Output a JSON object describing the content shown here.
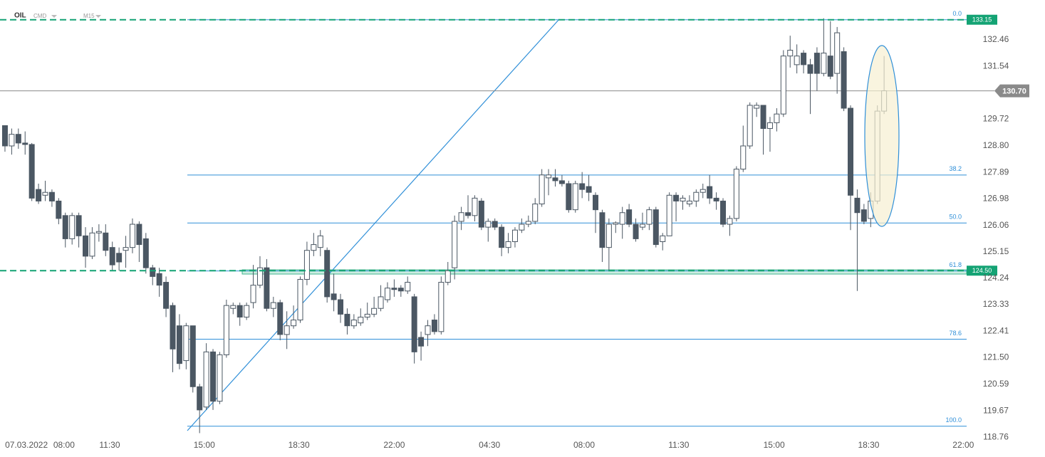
{
  "chart_data": {
    "type": "candlestick",
    "symbol": "OIL",
    "market": "CMD",
    "timeframe": "M15",
    "open": [
      129.5,
      128.8,
      129.2,
      128.9,
      128.85,
      127.3,
      127.1,
      127.2,
      126.9,
      126.4,
      125.6,
      126.4,
      125.7,
      125.0,
      125.8,
      125.8,
      125.3,
      125.1,
      125.2,
      125.3,
      126.1,
      125.6,
      124.6,
      124.4,
      124.1,
      123.3,
      122.6,
      121.4,
      122.6,
      120.5,
      119.8,
      121.7,
      120.0,
      121.6,
      123.2,
      123.3,
      122.9,
      123.4,
      124.0,
      124.6,
      123.2,
      123.4,
      122.3,
      122.6,
      122.8,
      124.2,
      125.2,
      125.3,
      125.2,
      123.7,
      123.5,
      123.0,
      122.6,
      122.7,
      122.9,
      123.0,
      123.2,
      123.5,
      123.9,
      123.9,
      123.8,
      123.6,
      122.2,
      122.3,
      122.8,
      122.4,
      124.1,
      124.6,
      126.2,
      126.5,
      126.4,
      126.9,
      126.0,
      126.2,
      126.0,
      125.3,
      125.5,
      125.9,
      126.1,
      126.2,
      126.8,
      127.7,
      127.7,
      127.6,
      127.5,
      126.6,
      127.5,
      127.4,
      127.1,
      126.5,
      125.3,
      126.1,
      126.1,
      126.6,
      126.1,
      126.0,
      126.1,
      126.6,
      125.5,
      125.7,
      127.1,
      126.9,
      126.8,
      126.9,
      127.2,
      127.4,
      127.0,
      126.9,
      126.1,
      126.3,
      128.0,
      128.8,
      130.1,
      130.2,
      129.4,
      129.6,
      129.9,
      131.9,
      131.6,
      132.0,
      131.6,
      132.0,
      131.3,
      131.9,
      131.3,
      132.05,
      130.1,
      127.0,
      126.6,
      126.3,
      126.9,
      130.0
    ],
    "high": [
      129.5,
      129.4,
      129.4,
      129.3,
      128.9,
      127.5,
      127.6,
      127.3,
      127.0,
      126.5,
      126.5,
      126.5,
      126.0,
      126.0,
      126.1,
      126.1,
      125.5,
      125.3,
      125.7,
      126.3,
      126.2,
      125.8,
      124.7,
      124.6,
      124.3,
      123.4,
      123.0,
      122.7,
      122.6,
      120.6,
      122.0,
      121.8,
      121.7,
      123.5,
      123.4,
      123.4,
      123.4,
      124.7,
      125.0,
      124.9,
      123.6,
      123.5,
      123.1,
      123.3,
      124.3,
      125.5,
      125.8,
      125.9,
      125.3,
      124.4,
      123.7,
      123.2,
      123.0,
      123.2,
      123.4,
      123.6,
      124.0,
      124.1,
      124.2,
      124.0,
      124.3,
      123.7,
      122.4,
      122.8,
      123.0,
      124.3,
      124.8,
      126.4,
      126.7,
      127.1,
      127.1,
      127.0,
      126.3,
      126.3,
      126.1,
      125.8,
      126.0,
      126.3,
      126.4,
      127.0,
      128.0,
      128.0,
      128.0,
      127.8,
      127.6,
      127.6,
      127.9,
      127.8,
      127.2,
      126.6,
      126.3,
      126.2,
      126.7,
      126.8,
      126.3,
      126.5,
      126.7,
      126.7,
      125.8,
      127.2,
      127.2,
      127.1,
      127.1,
      127.3,
      127.5,
      127.8,
      127.2,
      127.0,
      126.4,
      128.1,
      129.5,
      130.3,
      130.3,
      130.2,
      129.8,
      130.1,
      132.1,
      132.6,
      132.3,
      132.1,
      131.8,
      132.2,
      133.2,
      133.1,
      132.9,
      132.2,
      130.2,
      127.3,
      126.8,
      127.2,
      130.2,
      131.9
    ],
    "low": [
      128.6,
      128.5,
      128.7,
      128.5,
      126.9,
      126.8,
      126.9,
      126.7,
      126.1,
      125.3,
      125.4,
      125.3,
      124.6,
      124.9,
      125.5,
      125.0,
      124.5,
      124.5,
      124.6,
      125.1,
      124.8,
      124.4,
      124.0,
      123.6,
      122.9,
      121.0,
      121.1,
      121.1,
      120.3,
      118.9,
      119.7,
      119.7,
      119.9,
      121.5,
      123.0,
      122.6,
      122.8,
      123.2,
      123.9,
      123.1,
      122.9,
      122.1,
      121.8,
      122.5,
      122.7,
      124.0,
      125.0,
      125.0,
      123.4,
      123.1,
      122.7,
      122.3,
      122.5,
      122.6,
      122.8,
      122.9,
      123.1,
      123.4,
      123.6,
      123.6,
      123.7,
      121.3,
      121.4,
      121.9,
      122.3,
      122.3,
      124.0,
      124.2,
      125.9,
      126.3,
      126.2,
      125.9,
      125.5,
      125.9,
      125.0,
      125.1,
      125.3,
      125.8,
      126.0,
      126.1,
      126.7,
      127.1,
      127.4,
      127.4,
      126.5,
      126.5,
      127.0,
      126.9,
      125.8,
      124.8,
      124.5,
      125.8,
      125.6,
      126.0,
      125.5,
      125.9,
      125.9,
      125.3,
      125.2,
      125.7,
      126.2,
      126.6,
      126.7,
      126.7,
      127.0,
      126.8,
      126.6,
      126.0,
      125.7,
      126.2,
      127.9,
      128.7,
      129.8,
      128.5,
      128.6,
      129.3,
      129.8,
      131.5,
      131.3,
      131.3,
      129.9,
      130.7,
      131.2,
      131.1,
      130.6,
      130.0,
      125.9,
      123.8,
      126.1,
      126.0,
      126.8,
      129.9
    ],
    "close": [
      128.8,
      129.2,
      128.9,
      128.85,
      127.0,
      126.9,
      127.2,
      126.9,
      126.3,
      125.6,
      126.4,
      125.7,
      125.0,
      125.8,
      125.85,
      125.2,
      124.7,
      124.8,
      125.3,
      126.1,
      125.4,
      124.6,
      124.3,
      124.0,
      123.2,
      121.8,
      121.3,
      122.6,
      120.5,
      119.7,
      121.7,
      120.0,
      121.6,
      123.3,
      123.3,
      122.9,
      123.3,
      124.0,
      124.6,
      123.2,
      123.4,
      122.3,
      122.6,
      122.8,
      124.2,
      125.2,
      125.4,
      125.7,
      123.6,
      123.5,
      123.0,
      122.6,
      122.8,
      122.9,
      123.0,
      123.2,
      123.6,
      123.9,
      123.85,
      123.8,
      124.1,
      121.7,
      121.9,
      122.6,
      122.4,
      124.1,
      124.5,
      126.2,
      126.5,
      126.4,
      127.0,
      126.0,
      126.2,
      126.0,
      125.3,
      125.5,
      125.9,
      126.1,
      126.2,
      126.8,
      127.8,
      127.8,
      127.6,
      127.5,
      126.6,
      127.5,
      127.3,
      127.2,
      126.6,
      125.3,
      126.1,
      126.15,
      126.5,
      126.1,
      125.6,
      126.1,
      126.6,
      125.4,
      125.7,
      127.1,
      126.9,
      127.0,
      126.9,
      127.2,
      127.3,
      127.0,
      126.9,
      126.1,
      126.3,
      128.0,
      128.8,
      130.2,
      130.2,
      129.4,
      129.6,
      129.9,
      131.9,
      132.1,
      131.9,
      131.6,
      131.3,
      131.3,
      132.0,
      131.2,
      132.7,
      130.1,
      127.1,
      126.5,
      126.2,
      126.9,
      130.0,
      130.7
    ],
    "colors": {
      "down": "#4b5763",
      "up": "#ffffff",
      "level": "#14a374",
      "fib": "#2f8fd8",
      "current": "#8a8a8a"
    },
    "xlim": [
      -0.74,
      143.3
    ],
    "xticks": [
      {
        "value": 3.2,
        "label": "07.03.2022"
      },
      {
        "value": 8.8,
        "label": "08:00"
      },
      {
        "value": 15.6,
        "label": "11:30"
      },
      {
        "value": 29.7,
        "label": "15:00"
      },
      {
        "value": 43.8,
        "label": "18:30"
      },
      {
        "value": 58.0,
        "label": "22:00"
      },
      {
        "value": 72.2,
        "label": "04:30"
      },
      {
        "value": 86.3,
        "label": "08:00"
      },
      {
        "value": 100.4,
        "label": "11:30"
      },
      {
        "value": 114.6,
        "label": "15:00"
      },
      {
        "value": 128.7,
        "label": "18:30"
      },
      {
        "value": 142.8,
        "label": "22:00"
      }
    ],
    "ylim": [
      118.74,
      133.83
    ],
    "yticks": [
      132.46,
      131.54,
      129.72,
      {
        "value": 128.8,
        "label": "128.80"
      },
      127.89,
      126.98,
      126.06,
      125.15,
      124.24,
      123.33,
      122.41,
      {
        "value": 121.5,
        "label": "121.50"
      },
      120.59,
      119.67,
      118.76
    ],
    "levels": [
      133.15,
      {
        "value": 124.5,
        "label": "124.50"
      }
    ],
    "current_price": {
      "value": 130.7,
      "label": "130.70"
    },
    "fibonacci": {
      "high": 133.15,
      "low": 119.14,
      "levels": [
        {
          "value": 0,
          "label": "0.0"
        },
        38.2,
        {
          "value": 50,
          "label": "50.0"
        },
        61.8,
        78.6,
        {
          "value": 100,
          "label": "100.0"
        }
      ]
    }
  }
}
